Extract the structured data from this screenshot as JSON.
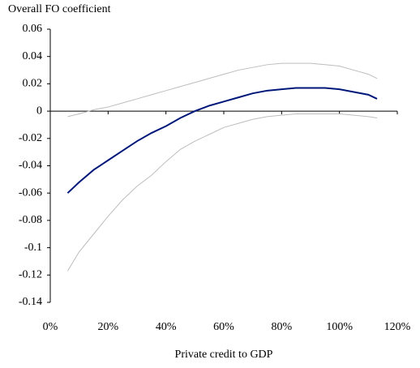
{
  "chart_data": {
    "type": "line",
    "y_title": "Overall FO coefficient",
    "x_title": "Private credit to GDP",
    "x": [
      6,
      10,
      15,
      20,
      25,
      30,
      35,
      40,
      45,
      50,
      55,
      60,
      65,
      70,
      75,
      80,
      85,
      90,
      95,
      100,
      105,
      110,
      113
    ],
    "series": [
      {
        "color": "#bdbdbd",
        "values": [
          -0.004,
          -0.002,
          0.001,
          0.003,
          0.006,
          0.009,
          0.012,
          0.015,
          0.018,
          0.021,
          0.024,
          0.027,
          0.03,
          0.032,
          0.034,
          0.035,
          0.035,
          0.035,
          0.034,
          0.033,
          0.03,
          0.027,
          0.024
        ]
      },
      {
        "color": "#bdbdbd",
        "values": [
          -0.117,
          -0.103,
          -0.09,
          -0.077,
          -0.065,
          -0.055,
          -0.047,
          -0.037,
          -0.028,
          -0.022,
          -0.017,
          -0.012,
          -0.009,
          -0.006,
          -0.004,
          -0.003,
          -0.002,
          -0.002,
          -0.002,
          -0.002,
          -0.003,
          -0.004,
          -0.005
        ]
      },
      {
        "color": "#00177a",
        "values": [
          -0.06,
          -0.052,
          -0.043,
          -0.036,
          -0.029,
          -0.022,
          -0.016,
          -0.011,
          -0.005,
          0.0,
          0.004,
          0.007,
          0.01,
          0.013,
          0.015,
          0.016,
          0.017,
          0.017,
          0.017,
          0.016,
          0.014,
          0.012,
          0.009
        ]
      }
    ],
    "xlim": [
      0,
      120
    ],
    "xticks": [
      {
        "value": 0,
        "label": "0%"
      },
      {
        "value": 20,
        "label": "20%"
      },
      {
        "value": 40,
        "label": "40%"
      },
      {
        "value": 60,
        "label": "60%"
      },
      {
        "value": 80,
        "label": "80%"
      },
      {
        "value": 100,
        "label": "100%"
      },
      {
        "value": 120,
        "label": "120%"
      }
    ],
    "ylim": [
      -0.14,
      0.06
    ],
    "yticks": [
      0.06,
      0.04,
      0.02,
      0,
      -0.02,
      -0.04,
      -0.06,
      -0.08,
      -0.1,
      -0.12,
      -0.14
    ]
  }
}
